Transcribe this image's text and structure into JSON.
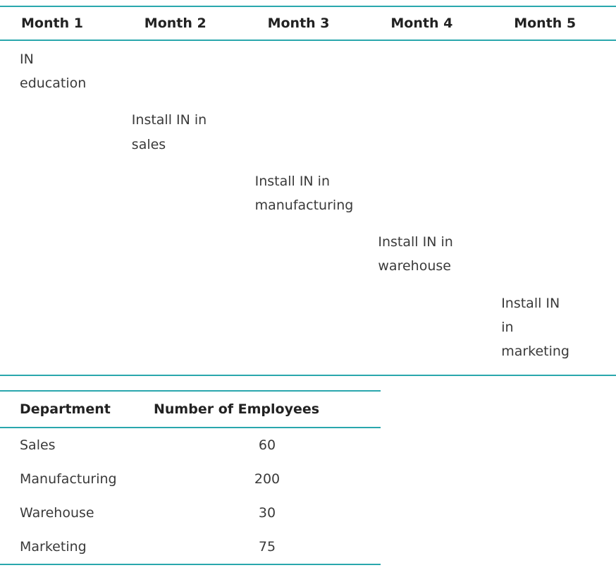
{
  "colors": {
    "accent": "#2aa7ad",
    "body_text": "#3a3a3a",
    "heading_text": "#222222"
  },
  "rollout_table": {
    "headers": [
      "Month 1",
      "Month 2",
      "Month 3",
      "Month 4",
      "Month 5"
    ],
    "rows": [
      [
        "IN education",
        "",
        "",
        "",
        ""
      ],
      [
        "",
        "Install IN in sales",
        "",
        "",
        ""
      ],
      [
        "",
        "",
        "Install IN in manufacturing",
        "",
        ""
      ],
      [
        "",
        "",
        "",
        "Install IN in warehouse",
        ""
      ],
      [
        "",
        "",
        "",
        "",
        "Install IN in marketing"
      ]
    ]
  },
  "department_table": {
    "headers": [
      "Department",
      "Number of Employees"
    ],
    "rows": [
      {
        "department": "Sales",
        "employees": "60"
      },
      {
        "department": "Manufacturing",
        "employees": "200"
      },
      {
        "department": "Warehouse",
        "employees": "30"
      },
      {
        "department": "Marketing",
        "employees": "75"
      }
    ]
  }
}
